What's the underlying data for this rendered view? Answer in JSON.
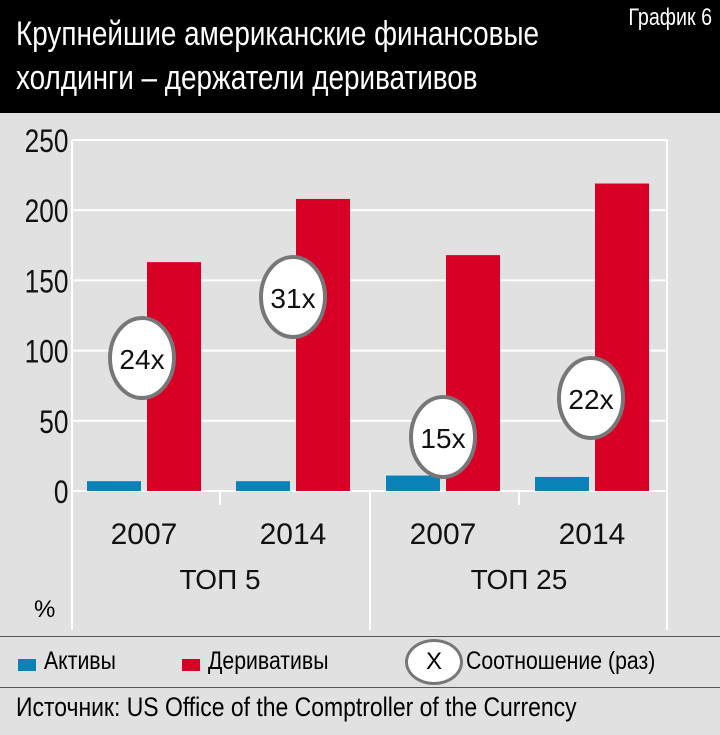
{
  "header": {
    "title": "Крупнейшие американские финансовые холдинги – держатели деривативов",
    "badge": "График 6"
  },
  "chart_data": {
    "type": "bar",
    "ylabel": "%",
    "ylim": [
      0,
      250
    ],
    "yticks": [
      0,
      50,
      100,
      150,
      200,
      250
    ],
    "grid": true,
    "categories": [
      "2007",
      "2014",
      "2007",
      "2014"
    ],
    "groups": [
      {
        "label": "ТОП 5",
        "categories": [
          "2007",
          "2014"
        ]
      },
      {
        "label": "ТОП 25",
        "categories": [
          "2007",
          "2014"
        ]
      }
    ],
    "series": [
      {
        "name": "Активы",
        "color": "#0a82b8",
        "values": [
          7,
          7,
          11,
          10
        ]
      },
      {
        "name": "Деривативы",
        "color": "#d90025",
        "values": [
          163,
          208,
          168,
          219
        ]
      }
    ],
    "ratios": {
      "name": "Соотношение (раз)",
      "symbol": "X",
      "values": [
        "24x",
        "31x",
        "15x",
        "22x"
      ]
    },
    "legend": "bottom"
  },
  "source": "Источник: US Office of the Comptroller of the Currency"
}
